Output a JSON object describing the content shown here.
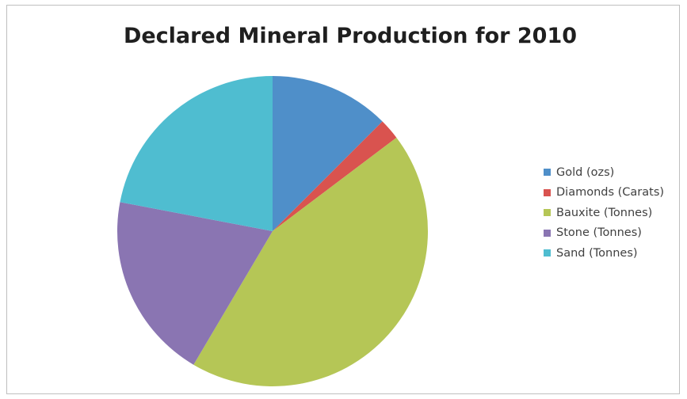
{
  "chart_data": {
    "type": "pie",
    "title": "Declared Mineral Production for 2010",
    "legend_position": "right",
    "categories": [
      "Gold (ozs)",
      "Diamonds (Carats)",
      "Bauxite (Tonnes)",
      "Stone (Tonnes)",
      "Sand (Tonnes)"
    ],
    "values": [
      12.5,
      2.2,
      43.8,
      19.5,
      22.0
    ],
    "colors": [
      "#4f8fc9",
      "#d9534f",
      "#b5c656",
      "#8a75b2",
      "#4fbdd0"
    ]
  }
}
